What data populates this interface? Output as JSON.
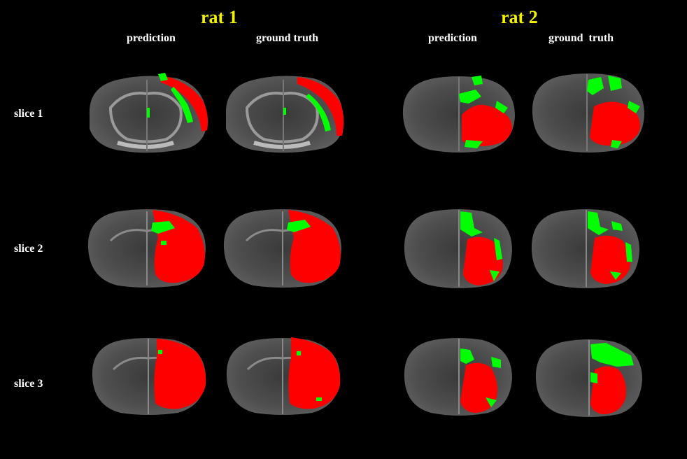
{
  "groups": [
    {
      "title": "rat 1",
      "columns": [
        "prediction",
        "ground truth"
      ]
    },
    {
      "title": "rat 2",
      "columns": [
        "prediction",
        "ground  truth"
      ]
    }
  ],
  "rows": [
    "slice 1",
    "slice 2",
    "slice 3"
  ],
  "colors": {
    "background": "#000000",
    "title": "#f2f200",
    "label": "#ffffff",
    "region_red": "#ff0000",
    "region_green": "#00ff00",
    "brain_gray": "#4a4a4a"
  }
}
